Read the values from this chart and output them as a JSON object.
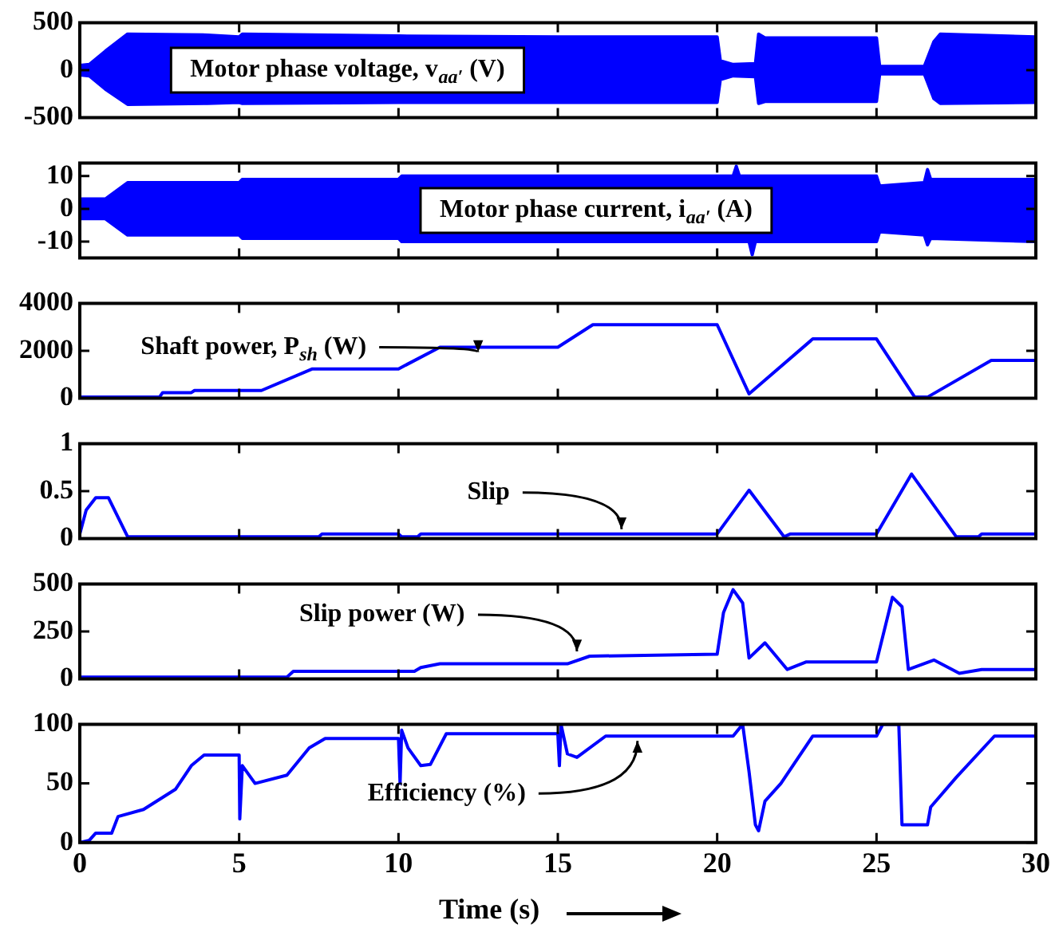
{
  "chart_data": [
    {
      "type": "area",
      "xlim": [
        0,
        30
      ],
      "xticks": [
        0,
        5,
        10,
        15,
        20,
        25,
        30
      ],
      "ylim": [
        -500,
        500
      ],
      "yticks": [
        -500,
        0,
        500
      ],
      "tick_labels": "y",
      "grid": false,
      "legend": false,
      "annotations": [
        "Motor phase voltage, v$_{aa′}$ (V)"
      ],
      "series": [
        {
          "color": "#0000ff",
          "x": [
            0,
            0.3,
            0.8,
            1.5,
            4,
            5,
            5.1,
            10,
            15,
            20,
            20.1,
            20.5,
            21.2,
            21.3,
            21.5,
            25,
            25.1,
            26.5,
            26.8,
            27,
            30
          ],
          "values": [
            50,
            60,
            200,
            380,
            370,
            350,
            380,
            360,
            350,
            350,
            100,
            60,
            70,
            380,
            340,
            340,
            40,
            40,
            300,
            380,
            350
          ]
        },
        {
          "color": "#0000ff",
          "x": [
            0,
            0.3,
            0.8,
            1.5,
            4,
            5,
            5.1,
            10,
            15,
            20,
            20.1,
            20.5,
            21.2,
            21.3,
            21.5,
            25,
            25.1,
            26.5,
            26.8,
            27,
            30
          ],
          "values": [
            -50,
            -60,
            -200,
            -360,
            -350,
            -340,
            -350,
            -340,
            -340,
            -340,
            -100,
            -60,
            -70,
            -350,
            -330,
            -330,
            -40,
            -40,
            -300,
            -350,
            -340
          ]
        }
      ]
    },
    {
      "type": "area",
      "xlim": [
        0,
        30
      ],
      "xticks": [
        0,
        5,
        10,
        15,
        20,
        25,
        30
      ],
      "ylim": [
        -15,
        14
      ],
      "yticks": [
        -10,
        0,
        10
      ],
      "tick_labels": "y",
      "grid": false,
      "legend": false,
      "annotations": [
        "Motor phase current, i$_{aa′}$ (A)"
      ],
      "series": [
        {
          "color": "#0000ff",
          "x": [
            0,
            0.8,
            1.5,
            5,
            5.1,
            10,
            10.1,
            20,
            20.5,
            20.6,
            20.7,
            21,
            25,
            25.1,
            26.5,
            26.6,
            26.7,
            30
          ],
          "values": [
            3,
            3,
            8,
            8,
            9,
            9,
            10,
            10,
            10,
            13,
            10,
            10,
            10,
            7,
            8,
            12,
            9,
            9
          ]
        },
        {
          "color": "#0000ff",
          "x": [
            0,
            0.8,
            1.5,
            5,
            5.1,
            10,
            10.1,
            20,
            21,
            21.1,
            21.2,
            25,
            25.1,
            26.5,
            26.6,
            26.7,
            30
          ],
          "values": [
            -3,
            -3,
            -8,
            -8,
            -9,
            -9,
            -10,
            -10,
            -10,
            -14,
            -10,
            -10,
            -7,
            -8,
            -11,
            -9,
            -10
          ]
        }
      ]
    },
    {
      "type": "line",
      "xlim": [
        0,
        30
      ],
      "xticks": [
        0,
        5,
        10,
        15,
        20,
        25,
        30
      ],
      "ylim": [
        0,
        4000
      ],
      "yticks": [
        0,
        2000,
        4000
      ],
      "tick_labels": "y",
      "grid": false,
      "legend": false,
      "annotations": [
        {
          "text": "Shaft power, P$_{sh}$ (W)",
          "x": 12.5,
          "y": 2150
        }
      ],
      "series": [
        {
          "color": "#0000ff",
          "x": [
            0,
            2.5,
            2.6,
            3.5,
            3.6,
            5.7,
            7.3,
            10,
            11.3,
            15,
            16.1,
            20,
            21,
            23,
            25,
            26.2,
            26.6,
            28.6,
            30
          ],
          "values": [
            50,
            50,
            240,
            240,
            330,
            330,
            1240,
            1240,
            2150,
            2150,
            3100,
            3100,
            190,
            2500,
            2500,
            50,
            50,
            1600,
            1600
          ]
        }
      ]
    },
    {
      "type": "line",
      "xlim": [
        0,
        30
      ],
      "xticks": [
        0,
        5,
        10,
        15,
        20,
        25,
        30
      ],
      "ylim": [
        0,
        1
      ],
      "yticks": [
        0,
        0.5,
        1
      ],
      "tick_labels": "y",
      "grid": false,
      "legend": false,
      "annotations": [
        {
          "text": "Slip",
          "x": 17,
          "y": 0.05
        }
      ],
      "series": [
        {
          "color": "#0000ff",
          "x": [
            0,
            0.2,
            0.5,
            0.9,
            1.5,
            7.5,
            7.6,
            10,
            10.1,
            10.6,
            10.7,
            20,
            21,
            22.1,
            22.3,
            25,
            26.1,
            27.5,
            28.2,
            28.3,
            30
          ],
          "values": [
            0.05,
            0.3,
            0.43,
            0.43,
            0.02,
            0.02,
            0.05,
            0.05,
            0.02,
            0.02,
            0.05,
            0.05,
            0.51,
            0.02,
            0.05,
            0.05,
            0.68,
            0.02,
            0.02,
            0.05,
            0.05
          ]
        }
      ]
    },
    {
      "type": "line",
      "xlim": [
        0,
        30
      ],
      "xticks": [
        0,
        5,
        10,
        15,
        20,
        25,
        30
      ],
      "ylim": [
        0,
        500
      ],
      "yticks": [
        0,
        250,
        500
      ],
      "tick_labels": "y",
      "grid": false,
      "legend": false,
      "annotations": [
        {
          "text": "Slip power (W)",
          "x": 15.6,
          "y": 120
        }
      ],
      "series": [
        {
          "color": "#0000ff",
          "x": [
            0,
            6.5,
            6.7,
            10.5,
            10.7,
            11.3,
            15.3,
            16,
            20,
            20.2,
            20.5,
            20.8,
            21,
            21.5,
            22.2,
            22.8,
            25,
            25.5,
            25.8,
            26,
            26.8,
            27.6,
            28.3,
            30
          ],
          "values": [
            10,
            10,
            40,
            40,
            60,
            80,
            80,
            120,
            130,
            350,
            470,
            400,
            110,
            190,
            50,
            90,
            90,
            430,
            380,
            50,
            100,
            30,
            50,
            50
          ]
        }
      ]
    },
    {
      "type": "line",
      "xlim": [
        0,
        30
      ],
      "xticks": [
        0,
        5,
        10,
        15,
        20,
        25,
        30
      ],
      "ylim": [
        0,
        100
      ],
      "yticks": [
        0,
        50,
        100
      ],
      "xlabel": "Time (s)",
      "grid": false,
      "legend": false,
      "annotations": [
        {
          "text": "Efficiency (%)",
          "x": 17.5,
          "y": 90
        }
      ],
      "series": [
        {
          "color": "#0000ff",
          "x": [
            0,
            0.3,
            0.5,
            1,
            1.2,
            2,
            3,
            3.5,
            3.9,
            5,
            5.02,
            5.1,
            5.5,
            6.5,
            7.2,
            7.7,
            10,
            10.05,
            10.1,
            10.3,
            10.7,
            11,
            11.5,
            15,
            15.05,
            15.1,
            15.3,
            15.6,
            16.5,
            20,
            20.5,
            20.8,
            21,
            21.2,
            21.3,
            21.5,
            22,
            23,
            25,
            25.2,
            25.7,
            25.8,
            26.6,
            26.7,
            27.5,
            28.7,
            30
          ],
          "values": [
            0,
            2,
            8,
            8,
            22,
            28,
            45,
            65,
            74,
            74,
            20,
            65,
            50,
            57,
            80,
            88,
            88,
            50,
            95,
            80,
            65,
            66,
            92,
            92,
            65,
            100,
            75,
            72,
            90,
            90,
            90,
            100,
            60,
            15,
            10,
            35,
            50,
            90,
            90,
            100,
            100,
            15,
            15,
            30,
            55,
            90,
            90
          ]
        }
      ]
    }
  ]
}
